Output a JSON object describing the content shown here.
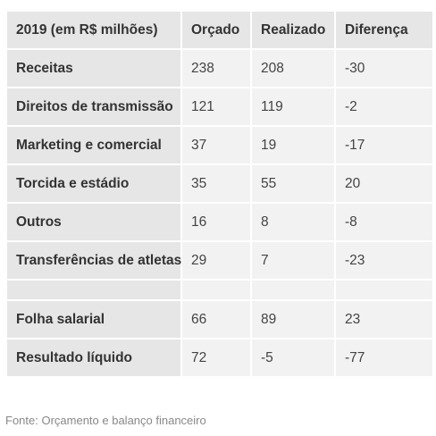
{
  "table": {
    "headers": [
      "2019 (em R$ milhões)",
      "Orçado",
      "Realizado",
      "Diferença"
    ],
    "rows": [
      {
        "label": "Receitas",
        "orcado": "238",
        "realizado": "208",
        "diferenca": "-30"
      },
      {
        "label": "Direitos de transmissão",
        "orcado": "121",
        "realizado": "119",
        "diferenca": "-2"
      },
      {
        "label": "Marketing e comercial",
        "orcado": "37",
        "realizado": "19",
        "diferenca": "-17"
      },
      {
        "label": "Torcida e estádio",
        "orcado": "35",
        "realizado": "55",
        "diferenca": "20"
      },
      {
        "label": "Outros",
        "orcado": "16",
        "realizado": "8",
        "diferenca": "-8"
      },
      {
        "label": "Transferências de atletas",
        "orcado": "29",
        "realizado": "7",
        "diferenca": "-23"
      },
      {
        "label": "Folha salarial",
        "orcado": "66",
        "realizado": "89",
        "diferenca": "23"
      },
      {
        "label": "Resultado líquido",
        "orcado": "72",
        "realizado": "-5",
        "diferenca": "-77"
      }
    ]
  },
  "source": "Fonte: Orçamento e balanço financeiro",
  "colors": {
    "header_bg": "#e6e6e6",
    "label_bg": "#e6e6e6",
    "cell_bg": "#f2f2f2",
    "text": "#333333",
    "source_text": "#888888"
  }
}
